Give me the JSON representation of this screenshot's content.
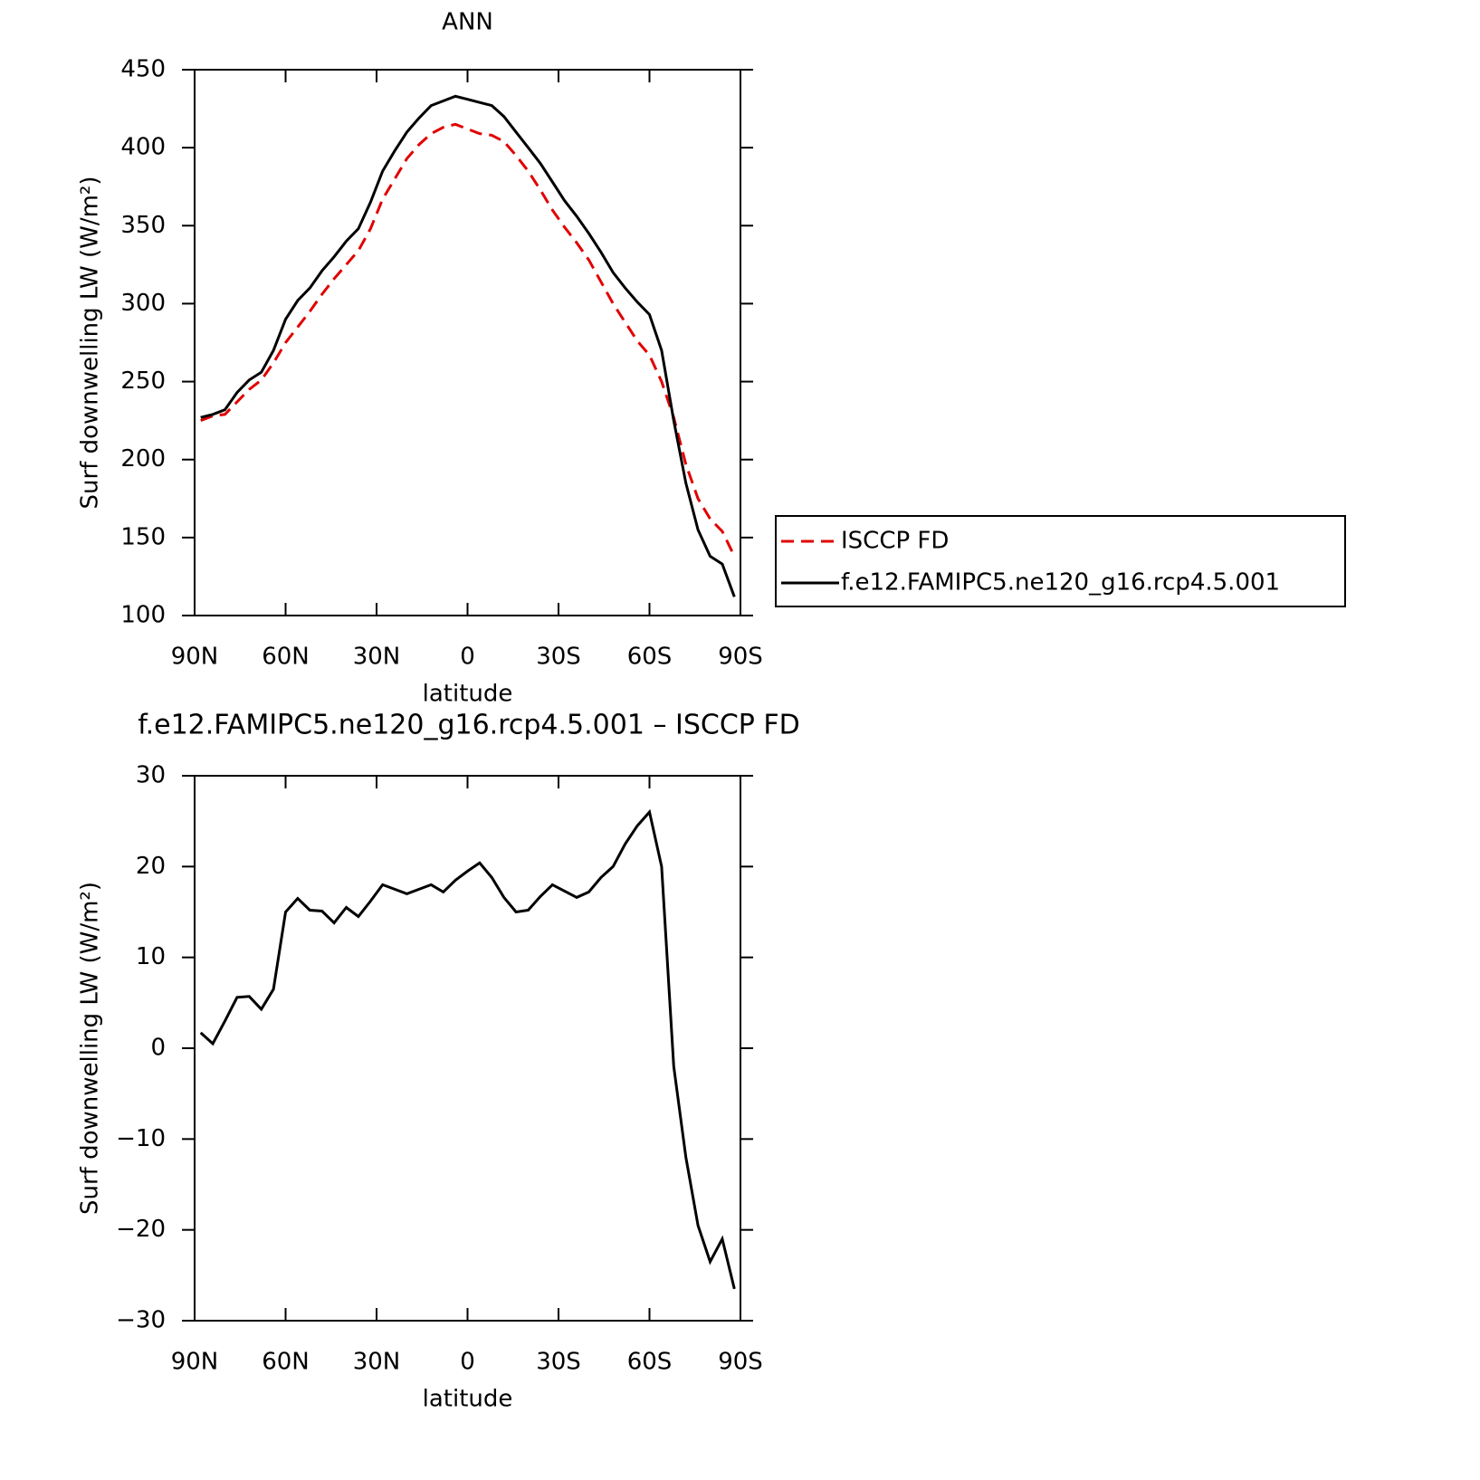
{
  "chart_data": [
    {
      "type": "line",
      "title": "ANN",
      "x_label": "latitude",
      "y_label": "Surf downwelling LW (W/m²)",
      "x": [
        88,
        84,
        80,
        76,
        72,
        68,
        64,
        60,
        56,
        52,
        48,
        44,
        40,
        36,
        32,
        28,
        24,
        20,
        16,
        12,
        8,
        4,
        0,
        -4,
        -8,
        -12,
        -16,
        -20,
        -24,
        -28,
        -32,
        -36,
        -40,
        -44,
        -48,
        -52,
        -56,
        -60,
        -64,
        -68,
        -72,
        -76,
        -80,
        -84,
        -88
      ],
      "xlim": [
        90,
        -90
      ],
      "xticks": [
        {
          "value": 90,
          "label": "90N"
        },
        {
          "value": 60,
          "label": "60N"
        },
        {
          "value": 30,
          "label": "30N"
        },
        0,
        {
          "value": -30,
          "label": "30S"
        },
        {
          "value": -60,
          "label": "60S"
        },
        {
          "value": -90,
          "label": "90S"
        }
      ],
      "ylim": [
        100,
        450
      ],
      "yticks": [
        100,
        150,
        200,
        250,
        300,
        350,
        400,
        450
      ],
      "legend": "right",
      "series": [
        {
          "name": "ISCCP FD",
          "color": "#e00000",
          "linestyle": "dashed",
          "values": [
            225,
            228,
            229,
            237,
            245,
            251,
            262,
            275,
            285,
            295,
            306,
            316,
            325,
            334,
            348,
            367,
            380,
            393,
            402,
            409,
            413,
            415,
            412,
            409,
            408,
            404,
            395,
            385,
            373,
            360,
            349,
            339,
            328,
            314,
            300,
            288,
            276,
            267,
            250,
            227,
            197,
            175,
            162,
            154,
            138
          ]
        },
        {
          "name": "f.e12.FAMIPC5.ne120_g16.rcp4.5.001",
          "color": "#000000",
          "linestyle": "solid",
          "values": [
            227,
            229,
            232,
            243,
            251,
            256,
            270,
            290,
            302,
            310,
            321,
            330,
            340,
            348,
            365,
            385,
            398,
            410,
            419,
            427,
            430,
            433,
            431,
            429,
            427,
            420,
            410,
            400,
            390,
            378,
            366,
            356,
            345,
            333,
            320,
            310,
            301,
            293,
            270,
            225,
            185,
            155,
            138,
            133,
            112
          ]
        }
      ]
    },
    {
      "type": "line",
      "title": "f.e12.FAMIPC5.ne120_g16.rcp4.5.001 – ISCCP FD",
      "x_label": "latitude",
      "y_label": "Surf downwelling LW (W/m²)",
      "x": [
        88,
        84,
        80,
        76,
        72,
        68,
        64,
        60,
        56,
        52,
        48,
        44,
        40,
        36,
        32,
        28,
        24,
        20,
        16,
        12,
        8,
        4,
        0,
        -4,
        -8,
        -12,
        -16,
        -20,
        -24,
        -28,
        -32,
        -36,
        -40,
        -44,
        -48,
        -52,
        -56,
        -60,
        -64,
        -68,
        -72,
        -76,
        -80,
        -84,
        -88
      ],
      "xlim": [
        90,
        -90
      ],
      "xticks": [
        {
          "value": 90,
          "label": "90N"
        },
        {
          "value": 60,
          "label": "60N"
        },
        {
          "value": 30,
          "label": "30N"
        },
        0,
        {
          "value": -30,
          "label": "30S"
        },
        {
          "value": -60,
          "label": "60S"
        },
        {
          "value": -90,
          "label": "90S"
        }
      ],
      "ylim": [
        -30,
        30
      ],
      "yticks": [
        {
          "value": -30,
          "label": "−30"
        },
        {
          "value": -20,
          "label": "−20"
        },
        {
          "value": -10,
          "label": "−10"
        },
        0,
        10,
        20,
        30
      ],
      "series": [
        {
          "color": "#000000",
          "linestyle": "solid",
          "values": [
            1.7,
            0.5,
            3,
            5.6,
            5.7,
            4.3,
            6.5,
            15,
            16.5,
            15.2,
            15.1,
            13.8,
            15.5,
            14.5,
            16.2,
            18,
            17.5,
            17,
            17.5,
            18,
            17.2,
            18.5,
            19.5,
            20.4,
            18.8,
            16.6,
            15,
            15.2,
            16.7,
            18,
            17.3,
            16.6,
            17.2,
            18.8,
            20,
            22.5,
            24.5,
            26,
            20,
            -2,
            -12,
            -19.5,
            -23.5,
            -21,
            -26.5
          ]
        }
      ]
    }
  ]
}
